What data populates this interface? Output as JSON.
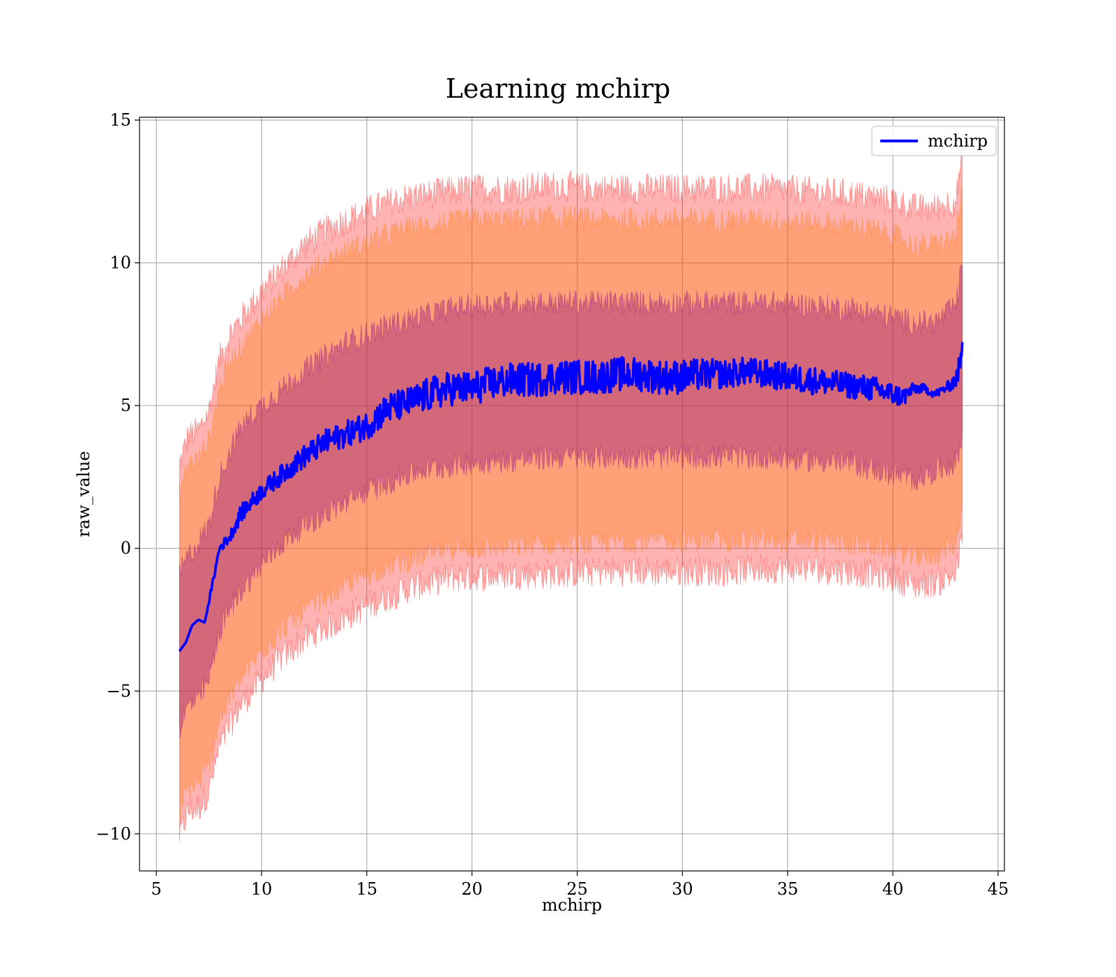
{
  "chart_data": {
    "type": "line",
    "title": "Learning mchirp",
    "xlabel": "mchirp",
    "ylabel": "raw_value",
    "xlim": [
      4.2,
      45.3
    ],
    "ylim": [
      -11.3,
      15.1
    ],
    "x_ticks": [
      5,
      10,
      15,
      20,
      25,
      30,
      35,
      40,
      45
    ],
    "y_ticks": [
      -10,
      -5,
      0,
      5,
      10,
      15
    ],
    "x_tick_labels": [
      "5",
      "10",
      "15",
      "20",
      "25",
      "30",
      "35",
      "40",
      "45"
    ],
    "y_tick_labels": [
      "−10",
      "−5",
      "0",
      "5",
      "10",
      "15"
    ],
    "grid": true,
    "legend": {
      "position": "upper right",
      "entries": [
        "mchirp"
      ]
    },
    "colors": {
      "mean_line": "#0000ff",
      "band_fill": "#ff0000",
      "band_fill_overlap": "#ff7f0e",
      "band_fill_inner": "#800080",
      "grid": "#b0b0b0"
    },
    "series": [
      {
        "name": "mchirp",
        "kind": "line",
        "x": [
          6.1,
          6.4,
          6.7,
          7.0,
          7.3,
          7.6,
          8.0,
          8.5,
          9.0,
          9.5,
          10.0,
          11.0,
          12.0,
          13.0,
          14.0,
          15.0,
          16.0,
          17.0,
          18.0,
          19.0,
          20.0,
          21.0,
          22.0,
          23.0,
          24.0,
          25.0,
          26.0,
          27.0,
          28.0,
          29.0,
          30.0,
          31.0,
          32.0,
          33.0,
          34.0,
          35.0,
          36.0,
          37.0,
          38.0,
          39.0,
          40.0,
          40.5,
          41.0,
          41.5,
          42.0,
          42.5,
          43.0,
          43.3
        ],
        "y": [
          -3.6,
          -3.3,
          -2.7,
          -2.5,
          -2.6,
          -1.5,
          0.0,
          0.4,
          1.2,
          1.6,
          2.0,
          2.6,
          3.2,
          3.7,
          4.0,
          4.3,
          4.9,
          5.1,
          5.4,
          5.6,
          5.6,
          5.8,
          5.9,
          5.9,
          6.0,
          6.0,
          6.0,
          6.1,
          6.1,
          6.0,
          6.0,
          6.1,
          6.1,
          6.2,
          6.1,
          6.0,
          5.9,
          5.8,
          5.7,
          5.6,
          5.4,
          5.3,
          5.6,
          5.6,
          5.4,
          5.6,
          5.9,
          6.8
        ],
        "noise": [
          0.0,
          0.0,
          0.0,
          0.0,
          0.0,
          0.1,
          0.15,
          0.2,
          0.3,
          0.3,
          0.3,
          0.35,
          0.4,
          0.45,
          0.45,
          0.5,
          0.55,
          0.55,
          0.6,
          0.6,
          0.6,
          0.6,
          0.6,
          0.6,
          0.6,
          0.6,
          0.6,
          0.6,
          0.6,
          0.6,
          0.6,
          0.55,
          0.5,
          0.5,
          0.5,
          0.5,
          0.5,
          0.45,
          0.45,
          0.45,
          0.4,
          0.35,
          0.2,
          0.15,
          0.15,
          0.15,
          0.3,
          0.5
        ]
      },
      {
        "name": "",
        "kind": "band",
        "x": [
          6.1,
          6.5,
          7.0,
          7.5,
          8.0,
          8.5,
          9.0,
          10.0,
          11.0,
          12.0,
          13.0,
          14.0,
          15.0,
          16.0,
          17.0,
          18.0,
          19.0,
          20.0,
          22.0,
          24.0,
          26.0,
          28.0,
          30.0,
          32.0,
          34.0,
          36.0,
          38.0,
          40.0,
          41.0,
          42.0,
          43.0,
          43.3
        ],
        "upper": [
          2.9,
          3.9,
          4.1,
          4.8,
          6.6,
          7.5,
          8.0,
          9.0,
          9.8,
          10.6,
          11.1,
          11.5,
          11.8,
          12.1,
          12.3,
          12.4,
          12.5,
          12.6,
          12.6,
          12.7,
          12.6,
          12.6,
          12.6,
          12.6,
          12.6,
          12.5,
          12.4,
          12.2,
          11.9,
          11.9,
          12.2,
          13.8
        ],
        "lower": [
          -10.1,
          -9.2,
          -9.1,
          -8.5,
          -7.0,
          -6.2,
          -5.5,
          -4.6,
          -3.8,
          -3.2,
          -2.8,
          -2.4,
          -2.0,
          -1.7,
          -1.4,
          -1.2,
          -1.0,
          -1.0,
          -0.9,
          -0.9,
          -0.8,
          -0.8,
          -0.8,
          -0.8,
          -0.7,
          -0.7,
          -0.8,
          -1.0,
          -1.3,
          -1.2,
          -0.9,
          0.4
        ],
        "noise": 0.55
      },
      {
        "name": "",
        "kind": "band",
        "x": [
          6.1,
          6.5,
          7.0,
          7.5,
          8.0,
          8.5,
          9.0,
          10.0,
          11.0,
          12.0,
          13.0,
          14.0,
          15.0,
          16.0,
          17.0,
          18.0,
          19.0,
          20.0,
          22.0,
          24.0,
          26.0,
          28.0,
          30.0,
          32.0,
          34.0,
          36.0,
          38.0,
          40.0,
          41.0,
          42.0,
          43.0,
          43.3
        ],
        "upper": [
          2.0,
          2.9,
          3.1,
          3.8,
          5.6,
          6.5,
          7.0,
          8.0,
          8.8,
          9.5,
          10.0,
          10.4,
          10.7,
          11.0,
          11.2,
          11.3,
          11.4,
          11.5,
          11.5,
          11.6,
          11.5,
          11.5,
          11.5,
          11.5,
          11.5,
          11.4,
          11.3,
          11.0,
          10.6,
          10.6,
          10.9,
          12.5
        ],
        "lower": [
          -9.2,
          -8.4,
          -8.2,
          -7.6,
          -6.0,
          -5.2,
          -4.6,
          -3.6,
          -2.8,
          -2.2,
          -1.7,
          -1.3,
          -0.9,
          -0.6,
          -0.4,
          -0.2,
          0.0,
          0.0,
          0.1,
          0.2,
          0.2,
          0.3,
          0.3,
          0.3,
          0.3,
          0.3,
          0.2,
          0.0,
          -0.3,
          -0.2,
          0.2,
          1.6
        ],
        "noise": 0.45
      },
      {
        "name": "",
        "kind": "band",
        "x": [
          6.1,
          6.5,
          7.0,
          7.5,
          8.0,
          8.5,
          9.0,
          10.0,
          11.0,
          12.0,
          13.0,
          14.0,
          15.0,
          16.0,
          17.0,
          18.0,
          19.0,
          20.0,
          22.0,
          24.0,
          26.0,
          28.0,
          30.0,
          32.0,
          34.0,
          36.0,
          38.0,
          40.0,
          41.0,
          42.0,
          43.0,
          43.3
        ],
        "upper": [
          -0.9,
          -0.3,
          0.2,
          0.8,
          2.5,
          3.4,
          4.2,
          5.0,
          5.6,
          6.2,
          6.7,
          7.2,
          7.5,
          7.8,
          8.0,
          8.2,
          8.4,
          8.5,
          8.6,
          8.6,
          8.6,
          8.6,
          8.6,
          8.6,
          8.6,
          8.5,
          8.4,
          8.1,
          7.9,
          7.9,
          8.5,
          10.0
        ],
        "lower": [
          -6.3,
          -5.5,
          -5.3,
          -4.6,
          -2.9,
          -2.1,
          -1.5,
          -0.6,
          0.2,
          0.8,
          1.2,
          1.6,
          2.0,
          2.3,
          2.6,
          2.8,
          2.9,
          3.0,
          3.1,
          3.2,
          3.2,
          3.2,
          3.2,
          3.2,
          3.2,
          3.1,
          3.0,
          2.6,
          2.4,
          2.7,
          3.0,
          4.0
        ],
        "noise": 0.45
      }
    ]
  }
}
